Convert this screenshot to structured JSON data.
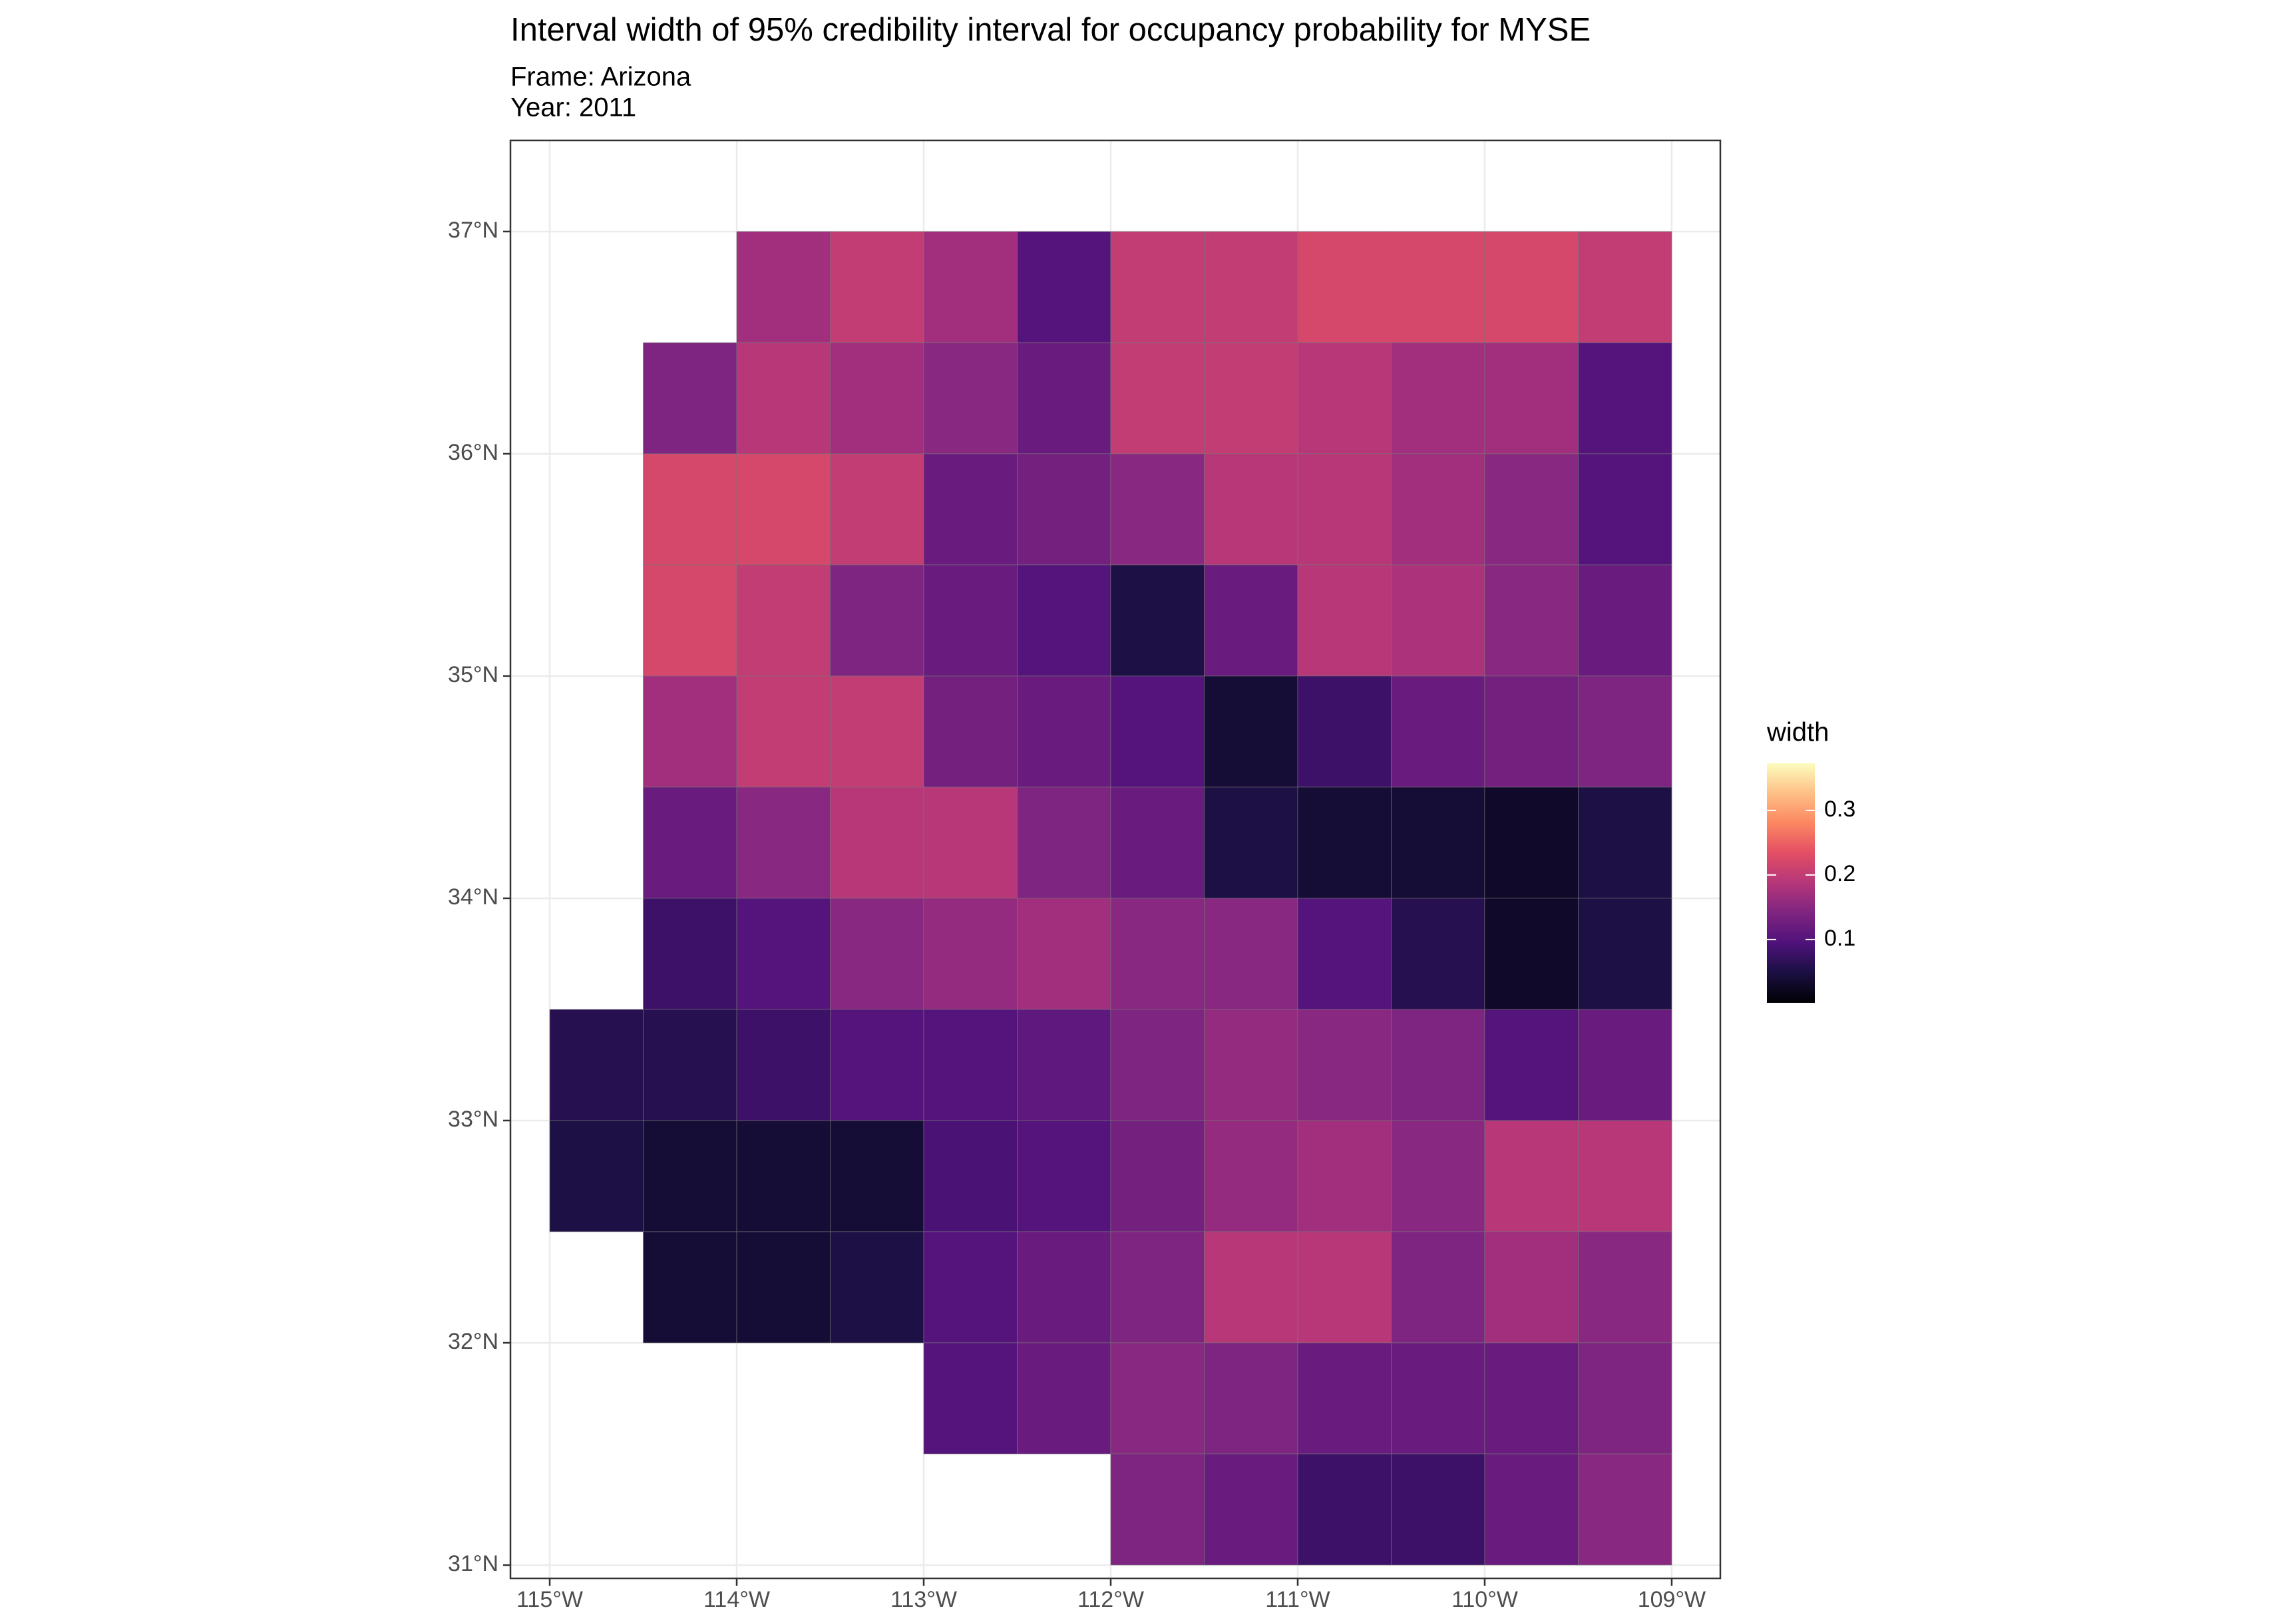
{
  "chart_data": {
    "type": "raster",
    "title": "Interval width of 95% credibility interval for occupancy probability for MYSE",
    "subtitle": [
      "Frame: Arizona",
      "Year: 2011"
    ],
    "x": [
      -114.75,
      -114.25,
      -113.75,
      -113.25,
      -112.75,
      -112.25,
      -111.75,
      -111.25,
      -110.75,
      -110.25,
      -109.75,
      -109.25
    ],
    "y": [
      36.75,
      36.25,
      35.75,
      35.25,
      34.75,
      34.25,
      33.75,
      33.25,
      32.75,
      32.25,
      31.75,
      31.25
    ],
    "values": [
      [
        null,
        null,
        0.17,
        0.2,
        0.17,
        0.1,
        0.2,
        0.2,
        0.22,
        0.22,
        0.22,
        0.2
      ],
      [
        null,
        0.14,
        0.19,
        0.17,
        0.15,
        0.12,
        0.2,
        0.2,
        0.19,
        0.17,
        0.17,
        0.1
      ],
      [
        null,
        0.22,
        0.22,
        0.2,
        0.12,
        0.13,
        0.15,
        0.19,
        0.19,
        0.17,
        0.15,
        0.1
      ],
      [
        null,
        0.22,
        0.2,
        0.14,
        0.12,
        0.1,
        0.05,
        0.12,
        0.19,
        0.18,
        0.15,
        0.12
      ],
      [
        null,
        0.17,
        0.2,
        0.2,
        0.13,
        0.12,
        0.1,
        0.04,
        0.08,
        0.12,
        0.13,
        0.14
      ],
      [
        null,
        0.12,
        0.15,
        0.19,
        0.19,
        0.14,
        0.12,
        0.05,
        0.04,
        0.04,
        0.03,
        0.05
      ],
      [
        null,
        0.08,
        0.1,
        0.15,
        0.16,
        0.17,
        0.15,
        0.15,
        0.1,
        0.06,
        0.03,
        0.05
      ],
      [
        0.06,
        0.06,
        0.08,
        0.1,
        0.1,
        0.11,
        0.14,
        0.16,
        0.15,
        0.14,
        0.1,
        0.12
      ],
      [
        0.05,
        0.04,
        0.04,
        0.04,
        0.09,
        0.1,
        0.13,
        0.16,
        0.17,
        0.15,
        0.19,
        0.19
      ],
      [
        null,
        0.04,
        0.04,
        0.05,
        0.1,
        0.12,
        0.14,
        0.19,
        0.19,
        0.14,
        0.17,
        0.15
      ],
      [
        null,
        null,
        null,
        null,
        0.1,
        0.12,
        0.15,
        0.14,
        0.12,
        0.12,
        0.12,
        0.14
      ],
      [
        null,
        null,
        null,
        null,
        null,
        null,
        0.14,
        0.12,
        0.08,
        0.08,
        0.12,
        0.15
      ]
    ],
    "xlim": [
      -115.21,
      -108.74
    ],
    "ylim": [
      30.94,
      37.41
    ],
    "xticks": [
      {
        "value": -115,
        "label": "115°W"
      },
      {
        "value": -114,
        "label": "114°W"
      },
      {
        "value": -113,
        "label": "113°W"
      },
      {
        "value": -112,
        "label": "112°W"
      },
      {
        "value": -111,
        "label": "111°W"
      },
      {
        "value": -110,
        "label": "110°W"
      },
      {
        "value": -109,
        "label": "109°W"
      }
    ],
    "yticks": [
      {
        "value": 31,
        "label": "31°N"
      },
      {
        "value": 32,
        "label": "32°N"
      },
      {
        "value": 33,
        "label": "33°N"
      },
      {
        "value": 34,
        "label": "34°N"
      },
      {
        "value": 35,
        "label": "35°N"
      },
      {
        "value": 36,
        "label": "36°N"
      },
      {
        "value": 37,
        "label": "37°N"
      }
    ],
    "grid": true,
    "colormap": "magma",
    "legend_title": "width",
    "colorlim": [
      0.002,
      0.373
    ],
    "colorticks": [
      0.1,
      0.2,
      0.3
    ]
  }
}
